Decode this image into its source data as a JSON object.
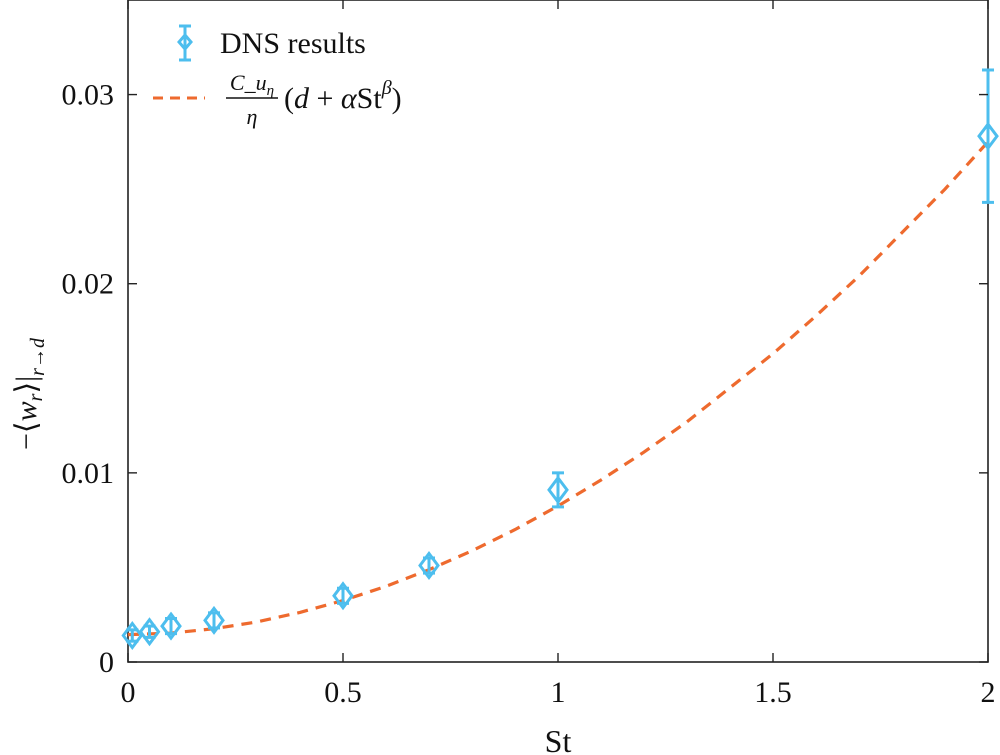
{
  "chart_data": {
    "type": "scatter",
    "xlabel": "St",
    "ylabel": "-⟨w_r⟩|_{r→d}",
    "xlim": [
      0,
      2
    ],
    "ylim": [
      0,
      0.035
    ],
    "x_ticks": [
      0,
      0.5,
      1,
      1.5,
      2
    ],
    "x_tick_labels": [
      "0",
      "0.5",
      "1",
      "1.5",
      "2"
    ],
    "y_ticks": [
      0,
      0.01,
      0.02,
      0.03
    ],
    "y_tick_labels": [
      "0",
      "0.01",
      "0.02",
      "0.03"
    ],
    "legend_position": "top-left",
    "series": [
      {
        "name": "DNS results",
        "kind": "errorbar",
        "marker": "diamond",
        "color": "#4DBEEE",
        "x": [
          0.01,
          0.05,
          0.1,
          0.2,
          0.5,
          0.7,
          1.0,
          2.0
        ],
        "y": [
          0.0014,
          0.0016,
          0.0019,
          0.0022,
          0.0035,
          0.0051,
          0.0091,
          0.0278
        ],
        "err_low": [
          0.0003,
          0.0003,
          0.0004,
          0.0004,
          0.0004,
          0.0004,
          0.0009,
          0.0035
        ],
        "err_high": [
          0.0003,
          0.0003,
          0.0004,
          0.0004,
          0.0004,
          0.0004,
          0.0009,
          0.0035
        ]
      },
      {
        "name": "C_u_η/η (d + α St^β)",
        "kind": "line",
        "style": "dashed",
        "color": "#EE6A2E",
        "x": [
          0,
          0.1,
          0.2,
          0.3,
          0.4,
          0.5,
          0.6,
          0.7,
          0.8,
          0.9,
          1.0,
          1.1,
          1.2,
          1.3,
          1.4,
          1.5,
          1.6,
          1.7,
          1.8,
          1.9,
          2.0
        ],
        "y": [
          0.00145,
          0.00153,
          0.00176,
          0.00212,
          0.00262,
          0.00325,
          0.004,
          0.00488,
          0.00588,
          0.007,
          0.00825,
          0.00962,
          0.0111,
          0.0127,
          0.0145,
          0.0163,
          0.0183,
          0.0204,
          0.0227,
          0.025,
          0.0275
        ]
      }
    ]
  }
}
